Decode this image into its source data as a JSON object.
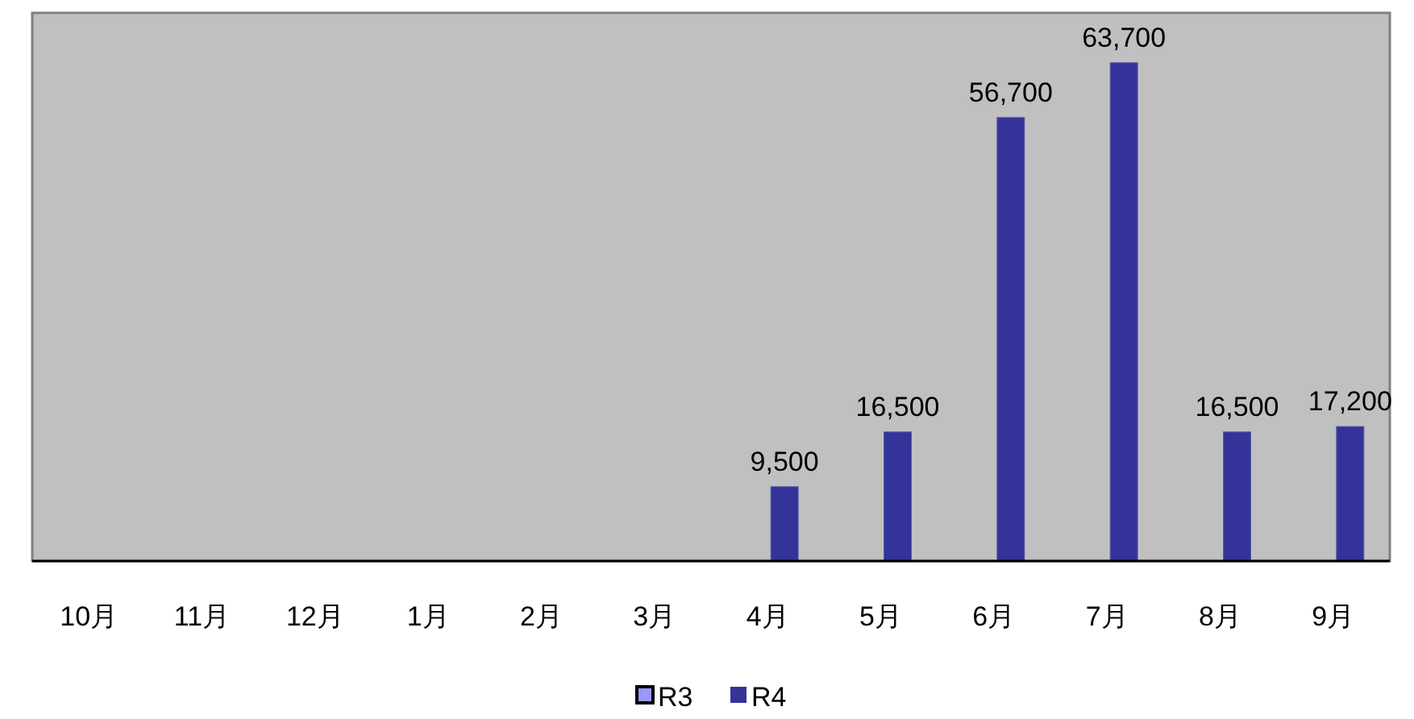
{
  "chart_data": {
    "type": "bar",
    "categories": [
      "10月",
      "11月",
      "12月",
      "1月",
      "2月",
      "3月",
      "4月",
      "5月",
      "6月",
      "7月",
      "8月",
      "9月"
    ],
    "series": [
      {
        "name": "R3",
        "color": "#9999ff",
        "values": [
          null,
          null,
          null,
          null,
          null,
          null,
          null,
          null,
          null,
          null,
          null,
          null
        ]
      },
      {
        "name": "R4",
        "color": "#333399",
        "values": [
          null,
          null,
          null,
          null,
          null,
          null,
          9500,
          16500,
          56700,
          63700,
          16500,
          17200
        ],
        "value_labels": [
          null,
          null,
          null,
          null,
          null,
          null,
          "9,500",
          "16,500",
          "56,700",
          "63,700",
          "16,500",
          "17,200"
        ]
      }
    ],
    "legend": "bottom"
  }
}
